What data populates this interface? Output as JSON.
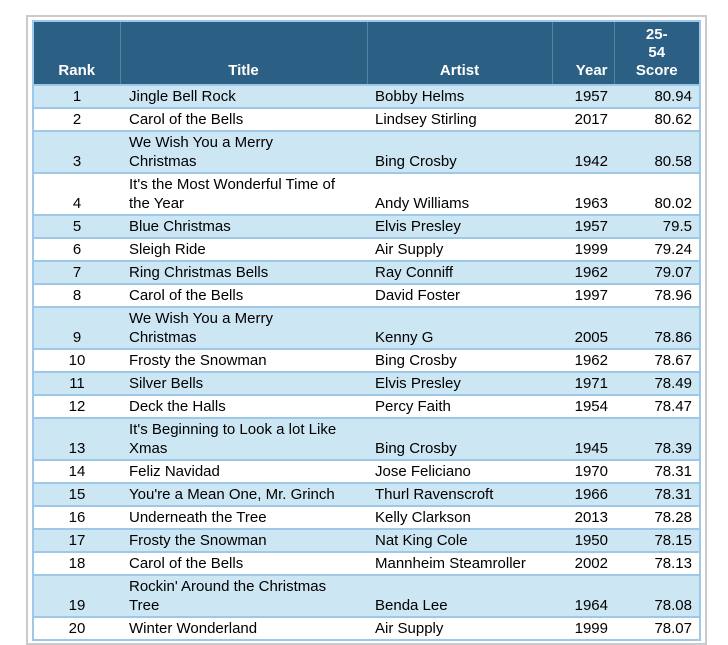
{
  "style": {
    "page_bg": "#FFFFFF",
    "header_bg": "#2B5F84",
    "header_text": "#FFFFFF",
    "row_bg": "#FFFFFF",
    "row_alt_bg": "#CDE6F3",
    "grid_color": "#9DC8E8",
    "frame_border": "#CBCBCB",
    "text_color": "#000000"
  },
  "chart_data": {
    "type": "table",
    "columns": [
      {
        "key": "rank",
        "label": "Rank"
      },
      {
        "key": "title",
        "label": "Title"
      },
      {
        "key": "artist",
        "label": "Artist"
      },
      {
        "key": "year",
        "label": "Year"
      },
      {
        "key": "score",
        "label": "25-\n54\nScore"
      }
    ],
    "rows": [
      {
        "rank": "1",
        "title": "Jingle Bell Rock",
        "artist": "Bobby Helms",
        "year": "1957",
        "score": "80.94"
      },
      {
        "rank": "2",
        "title": "Carol of the Bells",
        "artist": "Lindsey Stirling",
        "year": "2017",
        "score": "80.62"
      },
      {
        "rank": "3",
        "title": "We Wish You a Merry\nChristmas",
        "artist": "Bing Crosby",
        "year": "1942",
        "score": "80.58"
      },
      {
        "rank": "4",
        "title": "It's the Most Wonderful Time of\nthe Year",
        "artist": "Andy Williams",
        "year": "1963",
        "score": "80.02"
      },
      {
        "rank": "5",
        "title": "Blue Christmas",
        "artist": "Elvis Presley",
        "year": "1957",
        "score": "79.5"
      },
      {
        "rank": "6",
        "title": "Sleigh Ride",
        "artist": "Air Supply",
        "year": "1999",
        "score": "79.24"
      },
      {
        "rank": "7",
        "title": "Ring Christmas Bells",
        "artist": "Ray Conniff",
        "year": "1962",
        "score": "79.07"
      },
      {
        "rank": "8",
        "title": "Carol of the Bells",
        "artist": "David Foster",
        "year": "1997",
        "score": "78.96"
      },
      {
        "rank": "9",
        "title": "We Wish You a Merry\nChristmas",
        "artist": "Kenny G",
        "year": "2005",
        "score": "78.86"
      },
      {
        "rank": "10",
        "title": "Frosty the Snowman",
        "artist": "Bing Crosby",
        "year": "1962",
        "score": "78.67"
      },
      {
        "rank": "11",
        "title": "Silver Bells",
        "artist": "Elvis Presley",
        "year": "1971",
        "score": "78.49"
      },
      {
        "rank": "12",
        "title": "Deck the Halls",
        "artist": "Percy Faith",
        "year": "1954",
        "score": "78.47"
      },
      {
        "rank": "13",
        "title": "It's Beginning to Look a lot Like\nXmas",
        "artist": "Bing Crosby",
        "year": "1945",
        "score": "78.39"
      },
      {
        "rank": "14",
        "title": "Feliz Navidad",
        "artist": "Jose Feliciano",
        "year": "1970",
        "score": "78.31"
      },
      {
        "rank": "15",
        "title": "You're a Mean One, Mr. Grinch",
        "artist": "Thurl Ravenscroft",
        "year": "1966",
        "score": "78.31"
      },
      {
        "rank": "16",
        "title": "Underneath the Tree",
        "artist": "Kelly Clarkson",
        "year": "2013",
        "score": "78.28"
      },
      {
        "rank": "17",
        "title": "Frosty the Snowman",
        "artist": "Nat King Cole",
        "year": "1950",
        "score": "78.15"
      },
      {
        "rank": "18",
        "title": "Carol of the Bells",
        "artist": "Mannheim Steamroller",
        "year": "2002",
        "score": "78.13"
      },
      {
        "rank": "19",
        "title": "Rockin' Around the Christmas\nTree",
        "artist": "Benda Lee",
        "year": "1964",
        "score": "78.08"
      },
      {
        "rank": "20",
        "title": "Winter Wonderland",
        "artist": "Air Supply",
        "year": "1999",
        "score": "78.07"
      }
    ]
  }
}
